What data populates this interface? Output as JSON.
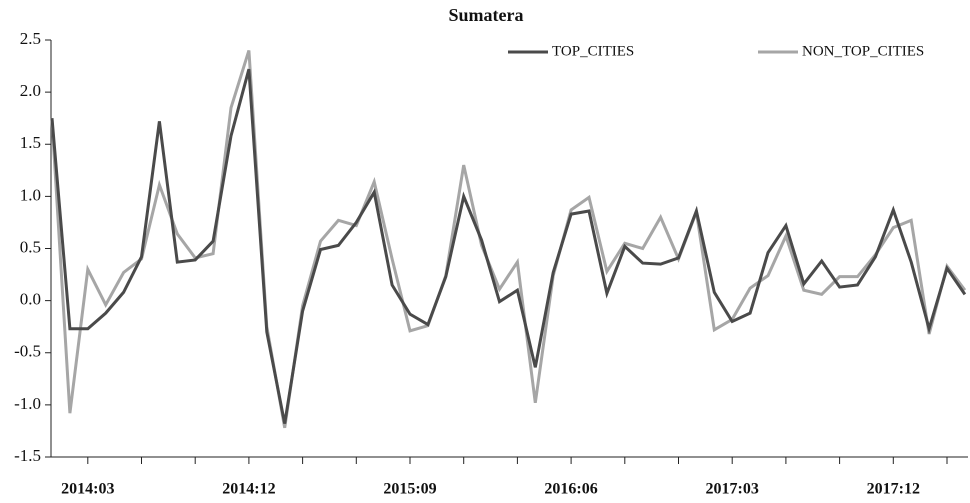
{
  "chart_data": {
    "type": "line",
    "title": "Sumatera",
    "categories": [
      null,
      null,
      "2014:03",
      null,
      null,
      null,
      null,
      null,
      null,
      null,
      null,
      "2014:12",
      null,
      null,
      null,
      null,
      null,
      null,
      null,
      null,
      "2015:09",
      null,
      null,
      null,
      null,
      null,
      null,
      null,
      null,
      "2016:06",
      null,
      null,
      null,
      null,
      null,
      null,
      null,
      null,
      "2017:03",
      null,
      null,
      null,
      null,
      null,
      null,
      null,
      null,
      "2017:12",
      null,
      null,
      null,
      null
    ],
    "series": [
      {
        "name": "TOP_CITIES",
        "color": "#4a4a4a",
        "values": [
          1.75,
          -0.27,
          -0.27,
          -0.12,
          0.08,
          0.42,
          1.72,
          0.37,
          0.39,
          0.57,
          1.58,
          2.22,
          -0.3,
          -1.18,
          -0.1,
          0.49,
          0.53,
          0.75,
          1.04,
          0.15,
          -0.13,
          -0.23,
          0.23,
          1.0,
          0.58,
          -0.01,
          0.1,
          -0.64,
          0.27,
          0.83,
          0.86,
          0.07,
          0.52,
          0.36,
          0.35,
          0.41,
          0.86,
          0.08,
          -0.2,
          -0.12,
          0.46,
          0.72,
          0.16,
          0.38,
          0.13,
          0.15,
          0.42,
          0.87,
          0.37,
          -0.27,
          0.31,
          0.06
        ]
      },
      {
        "name": "NON_TOP_CITIES",
        "color": "#a6a6a6",
        "values": [
          1.73,
          -1.08,
          0.3,
          -0.04,
          0.27,
          0.4,
          1.11,
          0.64,
          0.41,
          0.45,
          1.85,
          2.4,
          -0.25,
          -1.22,
          -0.05,
          0.57,
          0.77,
          0.72,
          1.14,
          0.4,
          -0.29,
          -0.24,
          0.24,
          1.3,
          0.53,
          0.11,
          0.37,
          -0.98,
          0.24,
          0.87,
          0.99,
          0.28,
          0.55,
          0.5,
          0.8,
          0.4,
          0.85,
          -0.28,
          -0.18,
          0.12,
          0.24,
          0.62,
          0.1,
          0.06,
          0.23,
          0.23,
          0.44,
          0.7,
          0.77,
          -0.32,
          0.33,
          0.1
        ]
      }
    ],
    "ylim": [
      -1.5,
      2.5
    ],
    "yticks": [
      -1.5,
      {
        "value": -1.0,
        "label": "-1.0"
      },
      -0.5,
      {
        "value": 0.0,
        "label": "0.0"
      },
      0.5,
      {
        "value": 1.0,
        "label": "1.0"
      },
      1.5,
      {
        "value": 2.0,
        "label": "2.0"
      },
      2.5
    ],
    "legend": "upper-right",
    "grid": false
  }
}
